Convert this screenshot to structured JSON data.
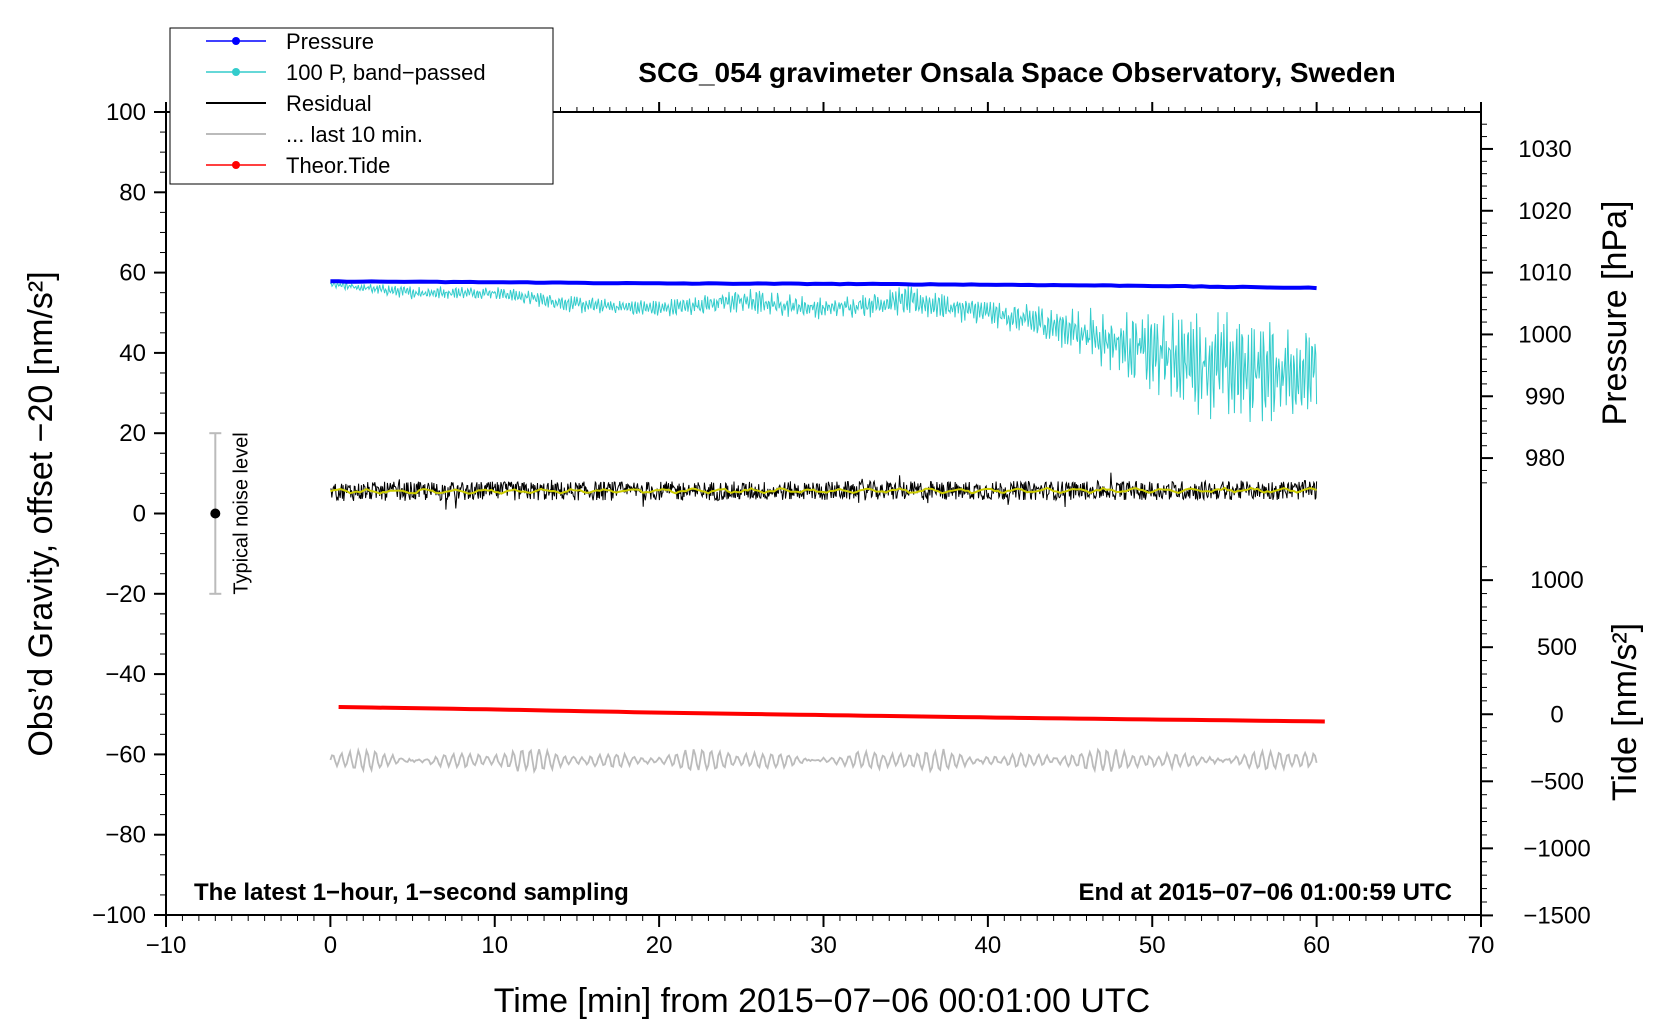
{
  "chart_data": {
    "type": "line",
    "title": "SCG_054 gravimeter Onsala Space Observatory, Sweden",
    "xlabel": "Time [min] from 2015−07−06 00:01:00 UTC",
    "ylabel_left": "Obs’d Gravity, offset −20 [nm/s²]",
    "ylabel_right_top": "Pressure [hPa]",
    "ylabel_right_bottom": "Tide [nm/s²]",
    "xlim": [
      -10,
      70
    ],
    "ylim_left": [
      -100,
      100
    ],
    "x_ticks": [
      -10,
      0,
      10,
      20,
      30,
      40,
      50,
      60,
      70
    ],
    "x_tick_labels": [
      "−10",
      "0",
      "10",
      "20",
      "30",
      "40",
      "50",
      "60",
      "70"
    ],
    "y_ticks_left": [
      -100,
      -80,
      -60,
      -40,
      -20,
      0,
      20,
      40,
      60,
      80,
      100
    ],
    "y_tick_labels_left": [
      "−100",
      "−80",
      "−60",
      "−40",
      "−20",
      "0",
      "20",
      "40",
      "60",
      "80",
      "100"
    ],
    "pressure_axis": {
      "ticks": [
        980,
        990,
        1000,
        1010,
        1020,
        1030
      ],
      "tick_labels": [
        "980",
        "990",
        "1000",
        "1010",
        "1020",
        "1030"
      ],
      "map": "pressure_hPa 1010 at gravity 60; 10 hPa per 15.4 gravity units"
    },
    "tide_axis": {
      "ticks": [
        -1500,
        -1000,
        -500,
        0,
        500,
        1000
      ],
      "tick_labels": [
        "−1500",
        "−1000",
        "−500",
        "0",
        "500",
        "1000"
      ],
      "map": "tide 0 at gravity -50; 500 nm/s² per 16.7 gravity units"
    },
    "legend": [
      {
        "name": "Pressure",
        "color": "#0000ff",
        "marker": true
      },
      {
        "name": "100 P, band−passed",
        "color": "#33cccc",
        "marker": true
      },
      {
        "name": "Residual",
        "color": "#000000",
        "marker": false
      },
      {
        "name": "... last 10 min.",
        "color": "#bbbbbb",
        "marker": false
      },
      {
        "name": "Theor.Tide",
        "color": "#ff0000",
        "marker": true
      }
    ],
    "series": [
      {
        "name": "Pressure",
        "color": "#0000ff",
        "x": [
          0,
          10,
          20,
          30,
          40,
          50,
          55,
          60
        ],
        "y": [
          57.8,
          57.6,
          57.3,
          57.2,
          57.0,
          56.7,
          56.4,
          56.2
        ]
      },
      {
        "name": "100 P, band−passed",
        "color": "#33cccc",
        "x": [
          0,
          5,
          10,
          15,
          20,
          25,
          30,
          35,
          40,
          45,
          50,
          55,
          60
        ],
        "y": [
          57,
          55,
          55,
          52,
          51,
          53,
          51,
          53,
          50,
          46,
          40,
          36,
          35
        ],
        "amplitude": [
          1,
          1.5,
          1.5,
          2,
          2,
          3,
          2.5,
          3.5,
          3,
          5,
          10,
          14,
          10
        ]
      },
      {
        "name": "Residual",
        "color": "#000000",
        "x": [
          0,
          60
        ],
        "y": [
          5.5,
          5.8
        ],
        "noise_amplitude": 3
      },
      {
        "name": "Residual smoothed",
        "color": "#cccc00",
        "x": [
          0,
          60
        ],
        "y": [
          5.5,
          5.8
        ]
      },
      {
        "name": "... last 10 min.",
        "color": "#bbbbbb",
        "x": [
          0,
          60
        ],
        "y": [
          -61.5,
          -61.5
        ],
        "oscillation_amplitude": 2.5
      },
      {
        "name": "Theor.Tide",
        "color": "#ff0000",
        "x": [
          0.5,
          10,
          20,
          30,
          40,
          50,
          60.5
        ],
        "y": [
          -48.2,
          -48.8,
          -49.6,
          -50.2,
          -50.8,
          -51.3,
          -51.8
        ]
      }
    ],
    "noise_bar": {
      "x": -7,
      "y": 0,
      "low": -20,
      "high": 20,
      "label": "Typical noise level"
    },
    "annotations": [
      {
        "text": "The latest 1−hour, 1−second sampling",
        "position": "bottom-left"
      },
      {
        "text": "End at 2015−07−06 01:00:59 UTC",
        "position": "bottom-right"
      }
    ]
  }
}
